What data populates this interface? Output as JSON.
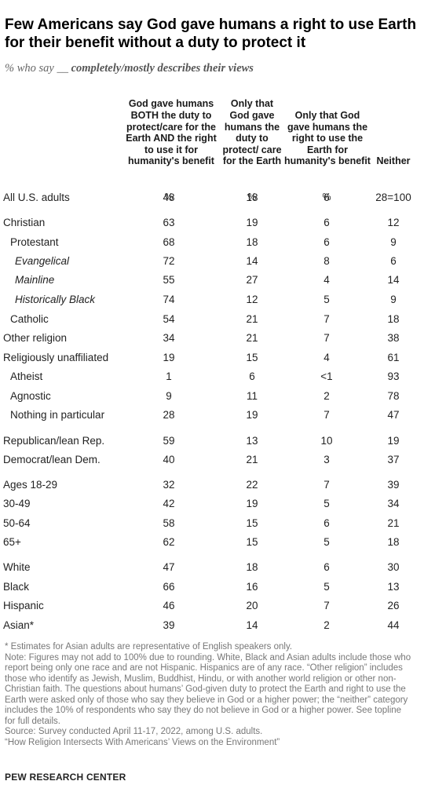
{
  "title": "Few Americans say God gave humans a right to use Earth for their benefit without a duty to protect it",
  "subtitle_prefix": "% who say __ ",
  "subtitle_emph": "completely/mostly describes their views",
  "chart_data": {
    "type": "table",
    "columns": [
      {
        "label": "God gave humans BOTH the duty to protect/care for the Earth AND the right to use it for humanity's benefit",
        "unit": "%"
      },
      {
        "label": "Only that God gave humans the duty to protect/ care for the Earth",
        "unit": "%"
      },
      {
        "label": "Only that God gave humans the right to use the Earth for humanity's benefit",
        "unit": "%"
      },
      {
        "label": "Neither",
        "unit": ""
      }
    ],
    "rows": [
      {
        "label": "All U.S. adults",
        "indent": 0,
        "values": [
          "48",
          "18",
          "6",
          "28=100"
        ]
      },
      {
        "label": "Christian",
        "indent": 0,
        "values": [
          "63",
          "19",
          "6",
          "12"
        ]
      },
      {
        "label": "Protestant",
        "indent": 1,
        "values": [
          "68",
          "18",
          "6",
          "9"
        ]
      },
      {
        "label": "Evangelical",
        "indent": 2,
        "values": [
          "72",
          "14",
          "8",
          "6"
        ]
      },
      {
        "label": "Mainline",
        "indent": 2,
        "values": [
          "55",
          "27",
          "4",
          "14"
        ]
      },
      {
        "label": "Historically Black",
        "indent": 2,
        "values": [
          "74",
          "12",
          "5",
          "9"
        ]
      },
      {
        "label": "Catholic",
        "indent": 1,
        "values": [
          "54",
          "21",
          "7",
          "18"
        ]
      },
      {
        "label": "Other religion",
        "indent": 0,
        "values": [
          "34",
          "21",
          "7",
          "38"
        ]
      },
      {
        "label": "Religiously unaffiliated",
        "indent": 0,
        "values": [
          "19",
          "15",
          "4",
          "61"
        ]
      },
      {
        "label": "Atheist",
        "indent": 1,
        "values": [
          "1",
          "6",
          "<1",
          "93"
        ]
      },
      {
        "label": "Agnostic",
        "indent": 1,
        "values": [
          "9",
          "11",
          "2",
          "78"
        ]
      },
      {
        "label": "Nothing in particular",
        "indent": 1,
        "values": [
          "28",
          "19",
          "7",
          "47"
        ]
      },
      {
        "label": "Republican/lean Rep.",
        "indent": 0,
        "values": [
          "59",
          "13",
          "10",
          "19"
        ]
      },
      {
        "label": "Democrat/lean Dem.",
        "indent": 0,
        "values": [
          "40",
          "21",
          "3",
          "37"
        ]
      },
      {
        "label": "Ages 18-29",
        "indent": 0,
        "values": [
          "32",
          "22",
          "7",
          "39"
        ]
      },
      {
        "label": "30-49",
        "indent": 0,
        "values": [
          "42",
          "19",
          "5",
          "34"
        ]
      },
      {
        "label": "50-64",
        "indent": 0,
        "values": [
          "58",
          "15",
          "6",
          "21"
        ]
      },
      {
        "label": "65+",
        "indent": 0,
        "values": [
          "62",
          "15",
          "5",
          "18"
        ]
      },
      {
        "label": "White",
        "indent": 0,
        "values": [
          "47",
          "18",
          "6",
          "30"
        ]
      },
      {
        "label": "Black",
        "indent": 0,
        "values": [
          "66",
          "16",
          "5",
          "13"
        ]
      },
      {
        "label": "Hispanic",
        "indent": 0,
        "values": [
          "46",
          "20",
          "7",
          "26"
        ]
      },
      {
        "label": "Asian*",
        "indent": 0,
        "values": [
          "39",
          "14",
          "2",
          "44"
        ]
      }
    ]
  },
  "notes": [
    "* Estimates for Asian adults are representative of English speakers only.",
    "Note: Figures may not add to 100% due to rounding. White, Black and Asian adults include those who report being only one race and are not Hispanic. Hispanics are of any race. “Other religion” includes those who identify as Jewish, Muslim, Buddhist, Hindu, or with another world religion or other non-Christian faith. The questions about humans’ God-given duty to protect the Earth and right to use the Earth were asked only of those who say they believe in God or a higher power; the “neither” category includes the 10% of respondents who say they do not believe in God or a higher power. See topline for full details.",
    "Source: Survey conducted April 11-17, 2022, among U.S. adults.",
    "“How Religion Intersects With Americans’ Views on the Environment”"
  ],
  "source_label": "PEW RESEARCH CENTER"
}
